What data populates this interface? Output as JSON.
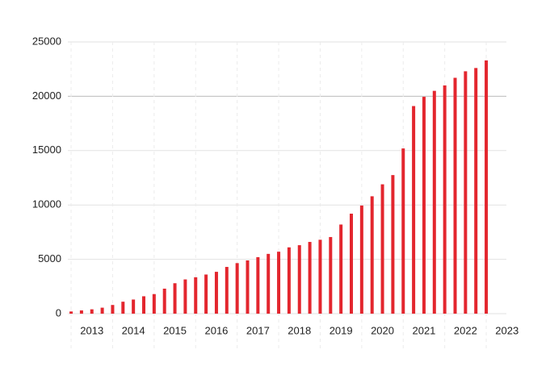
{
  "chart_data": {
    "type": "bar",
    "x": [
      2012.5,
      2012.75,
      2013,
      2013.25,
      2013.5,
      2013.75,
      2014,
      2014.25,
      2014.5,
      2014.75,
      2015,
      2015.25,
      2015.5,
      2015.75,
      2016,
      2016.25,
      2016.5,
      2016.75,
      2017,
      2017.25,
      2017.5,
      2017.75,
      2018,
      2018.25,
      2018.5,
      2018.75,
      2019,
      2019.25,
      2019.5,
      2019.75,
      2020,
      2020.25,
      2020.5,
      2020.75,
      2021,
      2021.25,
      2021.5,
      2021.75,
      2022,
      2022.25,
      2022.5
    ],
    "values": [
      200,
      300,
      400,
      550,
      800,
      1100,
      1300,
      1600,
      1800,
      2300,
      2800,
      3150,
      3350,
      3600,
      3850,
      4300,
      4650,
      4900,
      5200,
      5500,
      5700,
      6100,
      6300,
      6600,
      6800,
      7050,
      8200,
      9200,
      9950,
      10800,
      11900,
      12750,
      15200,
      19100,
      19950,
      20500,
      21000,
      21700,
      22300,
      22600,
      23300
    ],
    "color": "#e3262e",
    "xlim": [
      2012.4,
      2023.1
    ],
    "xticks": [
      2013,
      2014,
      2015,
      2016,
      2017,
      2018,
      2019,
      2020,
      2021,
      2022,
      2023
    ],
    "ylim": [
      0,
      25000
    ],
    "yticks": [
      0,
      5000,
      10000,
      15000,
      20000,
      25000
    ],
    "grid": true
  }
}
